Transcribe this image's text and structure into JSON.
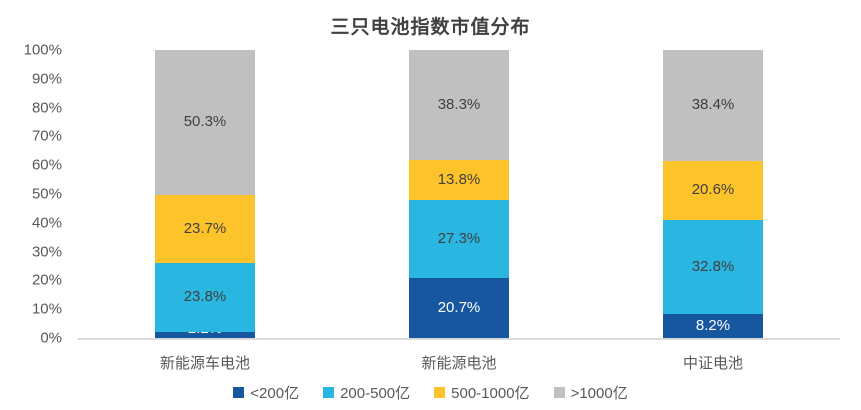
{
  "chart_data": {
    "type": "bar",
    "stacked": true,
    "title": "三只电池指数市值分布",
    "categories": [
      "新能源车电池",
      "新能源电池",
      "中证电池"
    ],
    "series": [
      {
        "name": "<200亿",
        "color": "#17579f",
        "label_color": "#ffffff",
        "values": [
          2.2,
          20.7,
          8.2
        ]
      },
      {
        "name": "200-500亿",
        "color": "#29b6e1",
        "label_color": "#404040",
        "values": [
          23.8,
          27.3,
          32.8
        ]
      },
      {
        "name": "500-1000亿",
        "color": "#fdc32b",
        "label_color": "#404040",
        "values": [
          23.7,
          13.8,
          20.6
        ]
      },
      {
        "name": ">1000亿",
        "color": "#c0c0c0",
        "label_color": "#404040",
        "values": [
          50.3,
          38.3,
          38.4
        ]
      }
    ],
    "y_ticks": [
      "0%",
      "10%",
      "20%",
      "30%",
      "40%",
      "50%",
      "60%",
      "70%",
      "80%",
      "90%",
      "100%"
    ],
    "ylim": [
      0,
      100
    ],
    "value_suffix": "%",
    "xlabel": "",
    "ylabel": "",
    "grid": false,
    "legend_position": "bottom",
    "colors": {
      "title_text": "#404040",
      "axis_text": "#595959",
      "axis_line": "#d9d9d9",
      "background": "#ffffff"
    }
  }
}
